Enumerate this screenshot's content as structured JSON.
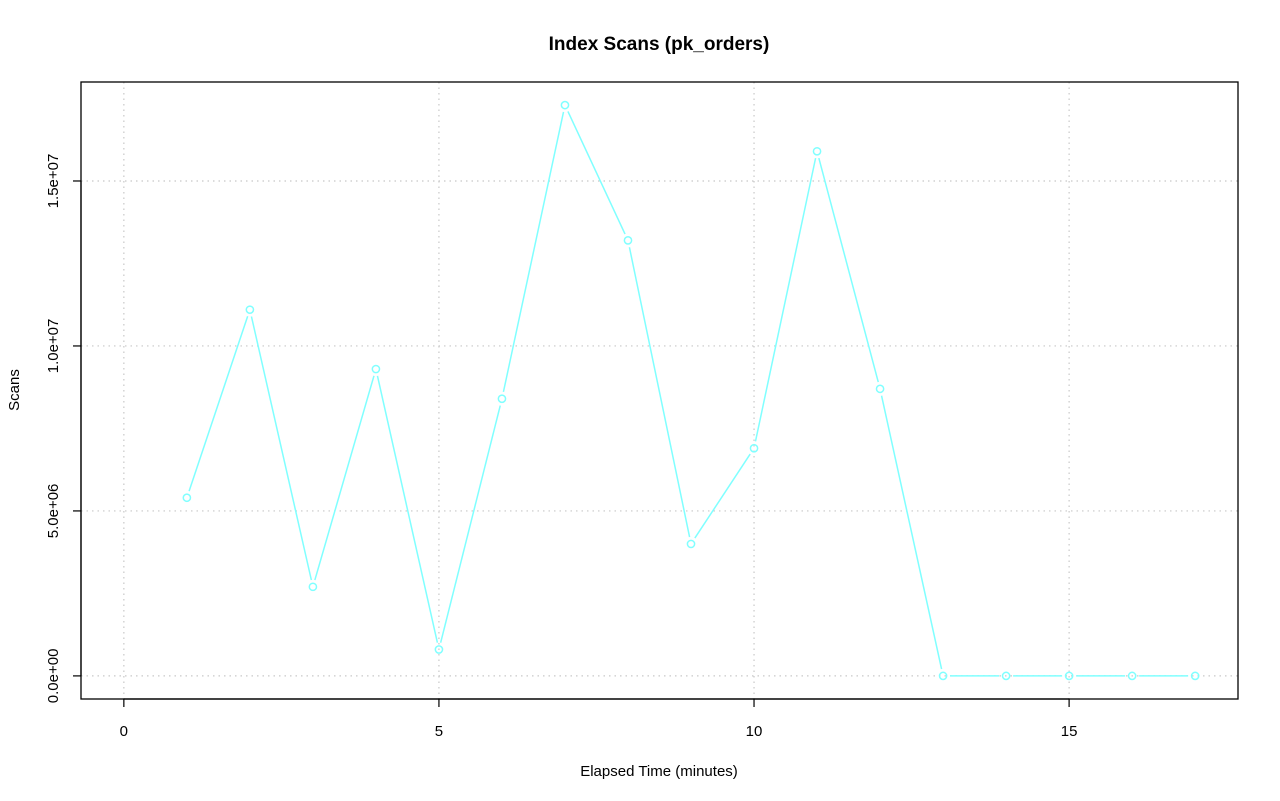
{
  "chart_data": {
    "type": "line",
    "title": "Index Scans (pk_orders)",
    "xlabel": "Elapsed Time (minutes)",
    "ylabel": "Scans",
    "xlim": [
      -0.68,
      17.68
    ],
    "ylim": [
      -700000,
      18000000
    ],
    "xticks": [
      0,
      5,
      10,
      15
    ],
    "xtick_labels": [
      "0",
      "5",
      "10",
      "15"
    ],
    "yticks": [
      0,
      5000000,
      10000000,
      15000000
    ],
    "ytick_labels": [
      "0.0e+00",
      "5.0e+06",
      "1.0e+07",
      "1.5e+07"
    ],
    "grid": true,
    "color": "#80ffff",
    "series": [
      {
        "x": [
          1,
          2,
          3,
          4,
          5,
          6,
          7,
          8,
          9,
          10,
          11,
          12,
          13,
          14,
          15,
          16,
          17
        ],
        "values": [
          5400000,
          11100000,
          2700000,
          9300000,
          800000,
          8400000,
          17300000,
          13200000,
          4000000,
          6900000,
          15900000,
          8700000,
          0,
          0,
          0,
          0,
          0
        ]
      }
    ]
  }
}
